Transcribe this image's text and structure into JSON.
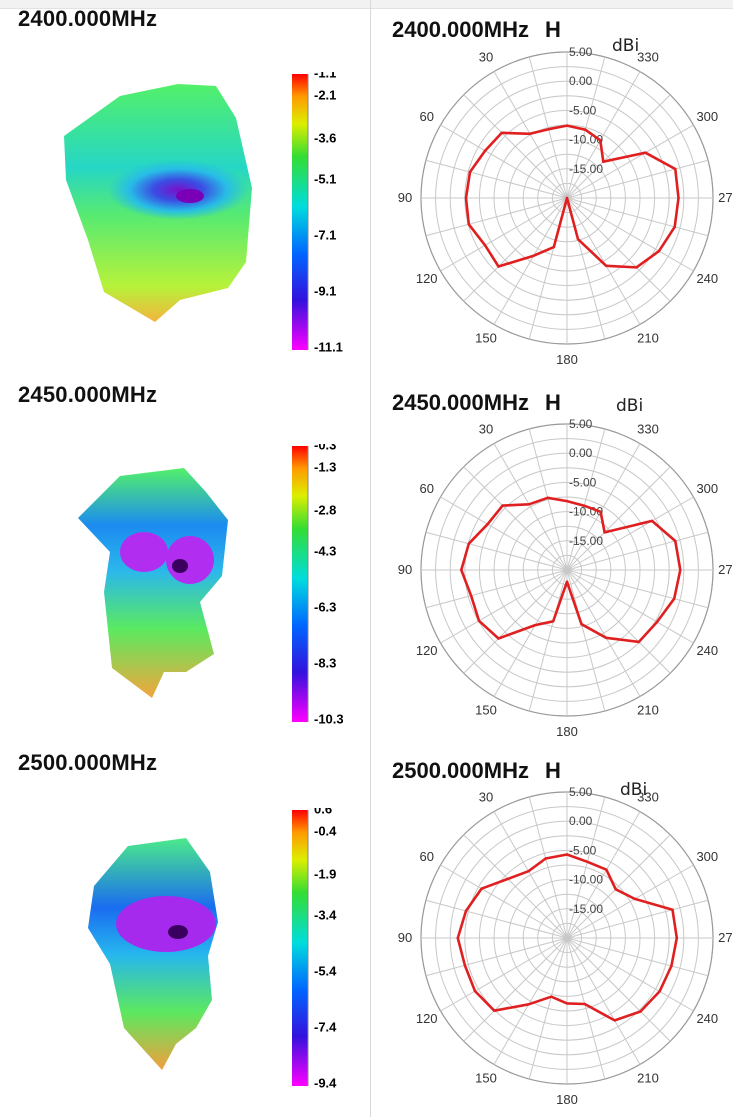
{
  "unit_label": "dBi",
  "polarization": "H",
  "panels": [
    {
      "freq": "2400.000MHz",
      "colorbar_ticks": [
        "-1.1",
        "-2.1",
        "-3.6",
        "-5.1",
        "-7.1",
        "-9.1",
        "-11.1"
      ],
      "ring_labels": [
        "5.00",
        "0.00",
        "-5.00",
        "-10.00",
        "-15.00"
      ],
      "angle_labels": [
        "30",
        "330",
        "60",
        "300",
        "90",
        "270",
        "120",
        "240",
        "150",
        "210",
        "180"
      ]
    },
    {
      "freq": "2450.000MHz",
      "colorbar_ticks": [
        "-0.3",
        "-1.3",
        "-2.8",
        "-4.3",
        "-6.3",
        "-8.3",
        "-10.3"
      ],
      "ring_labels": [
        "5.00",
        "0.00",
        "-5.00",
        "-10.00",
        "-15.00"
      ],
      "angle_labels": [
        "30",
        "330",
        "60",
        "300",
        "90",
        "270",
        "120",
        "240",
        "150",
        "210",
        "180"
      ]
    },
    {
      "freq": "2500.000MHz",
      "colorbar_ticks": [
        "0.6",
        "-0.4",
        "-1.9",
        "-3.4",
        "-5.4",
        "-7.4",
        "-9.4"
      ],
      "ring_labels": [
        "5.00",
        "0.00",
        "-5.00",
        "-10.00",
        "-15.00"
      ],
      "angle_labels": [
        "30",
        "330",
        "60",
        "300",
        "90",
        "270",
        "120",
        "240",
        "150",
        "210",
        "180"
      ]
    }
  ],
  "chart_data": [
    {
      "type": "polar",
      "title": "2400.000MHz  H",
      "r_unit": "dBi",
      "r_range": [
        -20,
        5
      ],
      "r_ticks": [
        5,
        0,
        -5,
        -10,
        -15
      ],
      "series": [
        {
          "color": "#e02020",
          "angles": [
            0,
            15,
            30,
            45,
            60,
            75,
            90,
            105,
            120,
            135,
            150,
            165,
            180,
            195,
            210,
            225,
            240,
            255,
            270,
            285,
            300,
            315,
            330,
            345
          ],
          "values": [
            -7.6,
            -7.8,
            -7.3,
            -4.2,
            -3.8,
            -2.8,
            -2.7,
            -2.6,
            -3.8,
            -3.4,
            -8.6,
            -11.3,
            -20,
            -12.7,
            -6.6,
            -3.2,
            -1.8,
            -0.9,
            -0.9,
            -0.8,
            -4.5,
            -11.2,
            -8.6,
            -7.9
          ]
        }
      ]
    },
    {
      "type": "polar",
      "title": "2450.000MHz  H",
      "r_unit": "dBi",
      "r_range": [
        -20,
        5
      ],
      "r_ticks": [
        5,
        0,
        -5,
        -10,
        -15
      ],
      "series": [
        {
          "color": "#e02020",
          "angles": [
            0,
            15,
            30,
            45,
            60,
            75,
            90,
            105,
            120,
            135,
            150,
            165,
            180,
            195,
            210,
            225,
            240,
            255,
            270,
            285,
            300,
            315,
            330,
            345
          ],
          "values": [
            -8.2,
            -7.2,
            -7.0,
            -4.4,
            -4.3,
            -2.6,
            -1.9,
            -3.0,
            -2.6,
            -3.4,
            -9.1,
            -10.9,
            -18,
            -10.4,
            -6.6,
            -2.6,
            -2.2,
            -1.0,
            -0.6,
            -0.8,
            -3.2,
            -10.9,
            -8.5,
            -8.6
          ]
        }
      ]
    },
    {
      "type": "polar",
      "title": "2500.000MHz  H",
      "r_unit": "dBi",
      "r_range": [
        -20,
        5
      ],
      "r_ticks": [
        5,
        0,
        -5,
        -10,
        -15
      ],
      "series": [
        {
          "color": "#e02020",
          "angles": [
            0,
            15,
            30,
            45,
            60,
            75,
            90,
            105,
            120,
            135,
            150,
            165,
            180,
            195,
            210,
            225,
            240,
            255,
            270,
            285,
            300,
            315,
            330,
            345
          ],
          "values": [
            -5.7,
            -5.9,
            -6.8,
            -5.7,
            -3.1,
            -2.1,
            -1.3,
            -1.9,
            -1.8,
            -2.4,
            -6.9,
            -9.6,
            -8.8,
            -8.3,
            -3.7,
            -2.2,
            -1.7,
            -1.5,
            -1.2,
            -1.3,
            -6.6,
            -8.2,
            -6.5,
            -6.5
          ]
        }
      ]
    }
  ]
}
